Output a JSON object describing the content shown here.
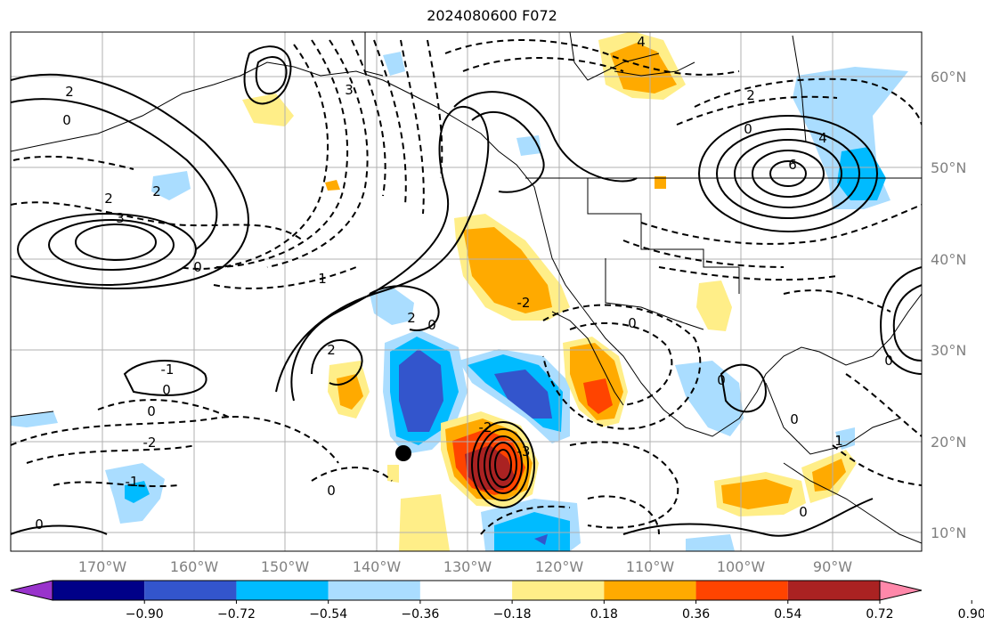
{
  "title": "2024080600 F072",
  "map": {
    "lon_labels": [
      "170°W",
      "160°W",
      "150°W",
      "140°W",
      "130°W",
      "120°W",
      "110°W",
      "100°W",
      "90°W"
    ],
    "lat_labels": [
      "60°N",
      "50°N",
      "40°N",
      "30°N",
      "20°N",
      "10°N"
    ],
    "contour_labels": [
      "0",
      "1",
      "2",
      "3",
      "-1",
      "-2",
      "-3",
      "4",
      "6"
    ],
    "storm_marker": "storm-center-dot"
  },
  "colorbar": {
    "colors": [
      "#9933cc",
      "#000088",
      "#3355cc",
      "#00bbff",
      "#aaddff",
      "#ffffff",
      "#ffee88",
      "#ffaa00",
      "#ff4400",
      "#aa2222",
      "#ff88aa"
    ],
    "tick_labels": [
      "−0.90",
      "−0.72",
      "−0.54",
      "−0.36",
      "−0.18",
      "0.18",
      "0.36",
      "0.54",
      "0.72",
      "0.90"
    ]
  }
}
